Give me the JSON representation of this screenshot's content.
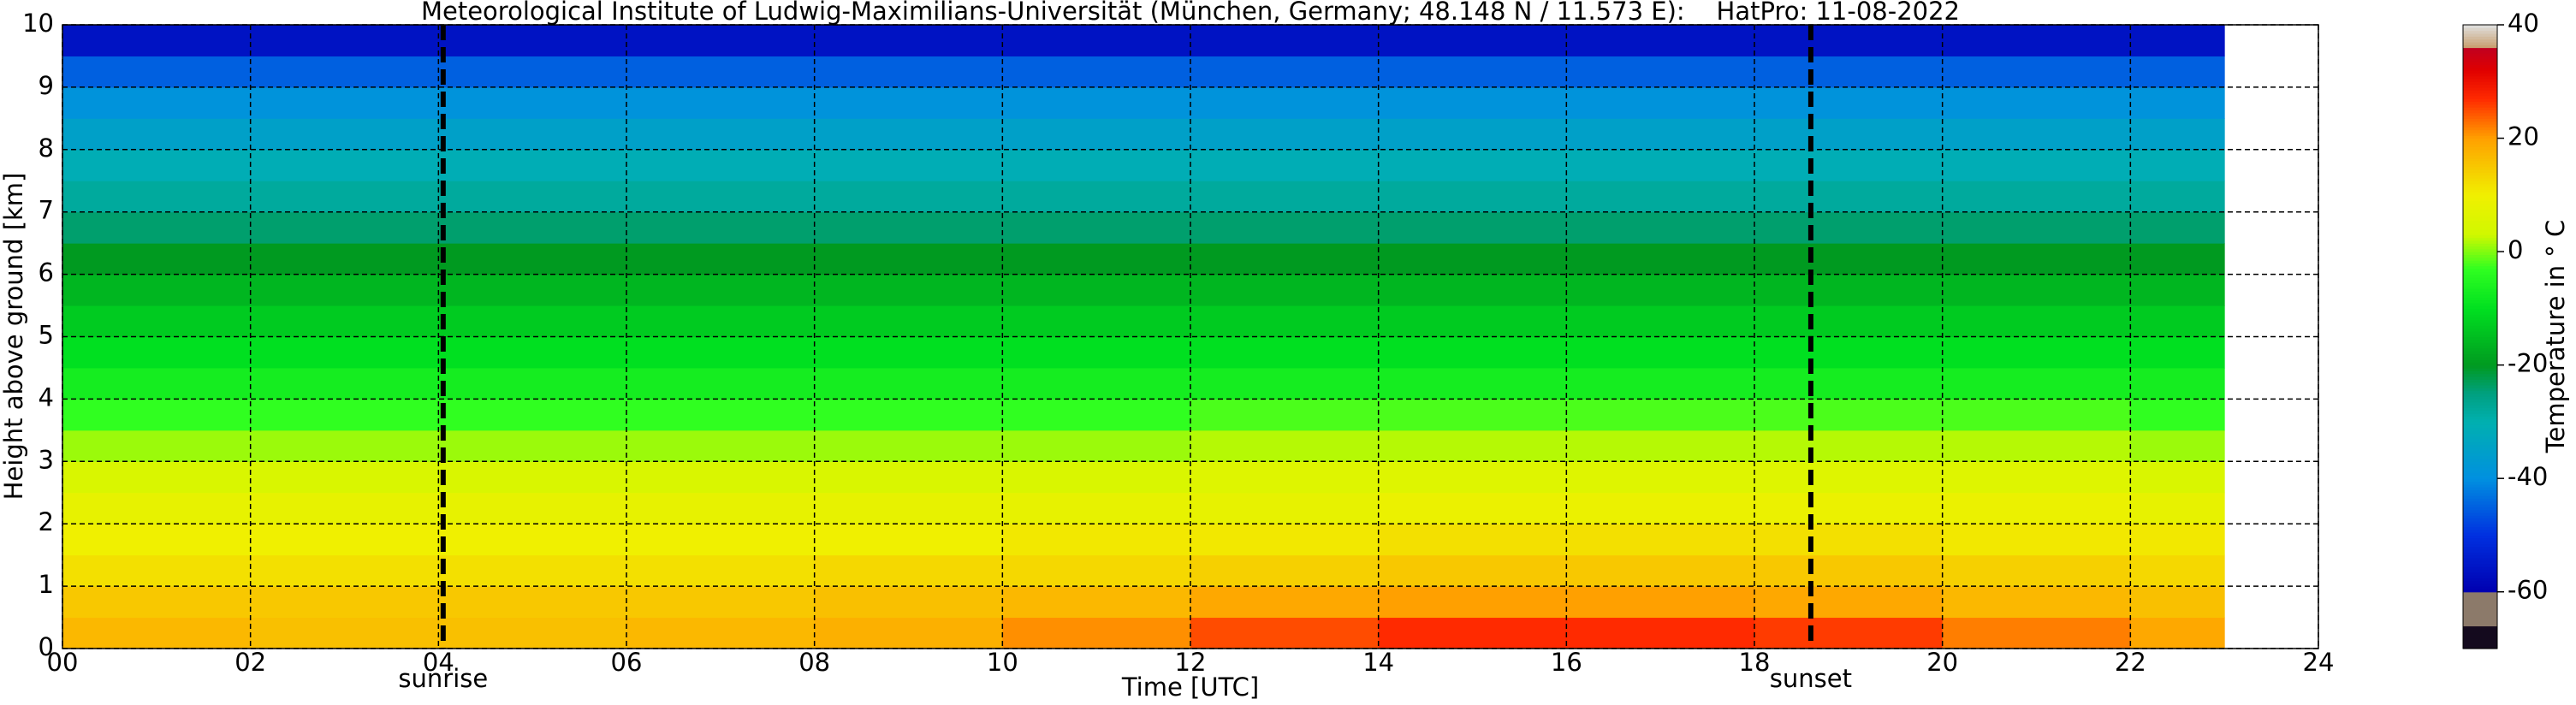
{
  "chart_data": {
    "type": "heatmap",
    "title": "Meteorological Institute of Ludwig-Maximilians-Universität (München, Germany; 48.148 N / 11.573 E):    HatPro: 11-08-2022",
    "x_label": "Time [UTC]",
    "y_label": "Height above ground [km]",
    "x_edges": [
      0,
      2,
      4,
      6,
      8,
      10,
      12,
      14,
      16,
      18,
      20,
      22,
      23
    ],
    "y_edges": [
      0,
      0.5,
      1,
      1.5,
      2,
      2.5,
      3,
      3.5,
      4,
      4.5,
      5,
      5.5,
      6,
      6.5,
      7,
      7.5,
      8,
      8.5,
      9,
      9.5,
      10
    ],
    "z": [
      [
        17,
        16,
        16,
        17,
        18,
        21,
        25,
        27,
        27,
        26,
        22,
        19
      ],
      [
        15,
        15,
        15,
        15,
        16,
        17,
        19,
        20,
        20,
        19,
        17,
        16
      ],
      [
        12,
        12,
        12,
        12,
        13,
        13,
        14,
        15,
        15,
        15,
        14,
        13
      ],
      [
        10,
        10,
        10,
        10,
        10,
        11,
        11,
        12,
        12,
        12,
        11,
        11
      ],
      [
        8,
        8,
        8,
        8,
        8,
        8,
        8,
        9,
        9,
        9,
        9,
        8
      ],
      [
        5,
        5,
        5,
        5,
        5,
        5,
        6,
        6,
        6,
        6,
        6,
        5
      ],
      [
        1,
        1,
        1,
        1,
        1,
        1,
        2,
        2,
        2,
        2,
        2,
        1
      ],
      [
        -3,
        -3,
        -3,
        -3,
        -3,
        -3,
        -2,
        -2,
        -2,
        -2,
        -2,
        -3
      ],
      [
        -7,
        -7,
        -7,
        -7,
        -7,
        -7,
        -7,
        -7,
        -7,
        -7,
        -7,
        -7
      ],
      [
        -10,
        -10,
        -10,
        -10,
        -10,
        -10,
        -10,
        -10,
        -10,
        -10,
        -10,
        -10
      ],
      [
        -13,
        -13,
        -13,
        -13,
        -13,
        -13,
        -13,
        -13,
        -13,
        -13,
        -13,
        -13
      ],
      [
        -16,
        -16,
        -16,
        -16,
        -16,
        -16,
        -16,
        -16,
        -16,
        -16,
        -16,
        -16
      ],
      [
        -20,
        -20,
        -20,
        -20,
        -20,
        -20,
        -20,
        -20,
        -20,
        -20,
        -20,
        -20
      ],
      [
        -24,
        -24,
        -24,
        -24,
        -24,
        -24,
        -24,
        -24,
        -24,
        -24,
        -24,
        -24
      ],
      [
        -28,
        -28,
        -28,
        -28,
        -28,
        -28,
        -28,
        -28,
        -28,
        -28,
        -28,
        -28
      ],
      [
        -31,
        -31,
        -31,
        -31,
        -31,
        -31,
        -31,
        -31,
        -31,
        -31,
        -31,
        -31
      ],
      [
        -35,
        -35,
        -35,
        -35,
        -35,
        -35,
        -35,
        -35,
        -35,
        -35,
        -35,
        -35
      ],
      [
        -39,
        -39,
        -39,
        -39,
        -39,
        -39,
        -39,
        -39,
        -39,
        -39,
        -39,
        -39
      ],
      [
        -45,
        -45,
        -45,
        -45,
        -45,
        -45,
        -45,
        -45,
        -45,
        -45,
        -45,
        -45
      ],
      [
        -56,
        -56,
        -56,
        -56,
        -56,
        -56,
        -56,
        -56,
        -56,
        -56,
        -56,
        -56
      ]
    ],
    "xlim": [
      0,
      24
    ],
    "xticks": [
      {
        "value": 0,
        "label": "00"
      },
      {
        "value": 2,
        "label": "02"
      },
      {
        "value": 4,
        "label": "04"
      },
      {
        "value": 6,
        "label": "06"
      },
      {
        "value": 8,
        "label": "08"
      },
      10,
      12,
      14,
      16,
      18,
      20,
      22,
      24
    ],
    "ylim": [
      0,
      10
    ],
    "yticks": [
      0,
      1,
      2,
      3,
      4,
      5,
      6,
      7,
      8,
      9,
      10
    ],
    "grid": true,
    "annotations": [
      {
        "x": 4.05,
        "label": "sunrise"
      },
      {
        "x": 18.6,
        "label": "sunset"
      }
    ],
    "colorbar": {
      "label": "Temperature in ° C",
      "lim": [
        -70,
        40
      ],
      "ticks": [
        -60,
        -40,
        -20,
        0,
        20,
        40
      ]
    },
    "colormap": [
      {
        "value": -70,
        "color": "#140a1e"
      },
      {
        "value": -66,
        "color": "#140a1e"
      },
      {
        "value": -65.9,
        "color": "#8c7a6a"
      },
      {
        "value": -60,
        "color": "#8c7a6a"
      },
      {
        "value": -59.9,
        "color": "#0000b0"
      },
      {
        "value": -50,
        "color": "#0030e0"
      },
      {
        "value": -40,
        "color": "#0090e0"
      },
      {
        "value": -30,
        "color": "#00b0b0"
      },
      {
        "value": -25,
        "color": "#00a080"
      },
      {
        "value": -20,
        "color": "#009a20"
      },
      {
        "value": -10,
        "color": "#00e020"
      },
      {
        "value": -3,
        "color": "#30ff20"
      },
      {
        "value": 3,
        "color": "#d0f800"
      },
      {
        "value": 10,
        "color": "#f0f000"
      },
      {
        "value": 20,
        "color": "#ffa000"
      },
      {
        "value": 27,
        "color": "#ff2a00"
      },
      {
        "value": 32,
        "color": "#e00000"
      },
      {
        "value": 36,
        "color": "#c00020"
      },
      {
        "value": 36.1,
        "color": "#c8a070"
      },
      {
        "value": 40,
        "color": "#e0e0e0"
      }
    ]
  }
}
